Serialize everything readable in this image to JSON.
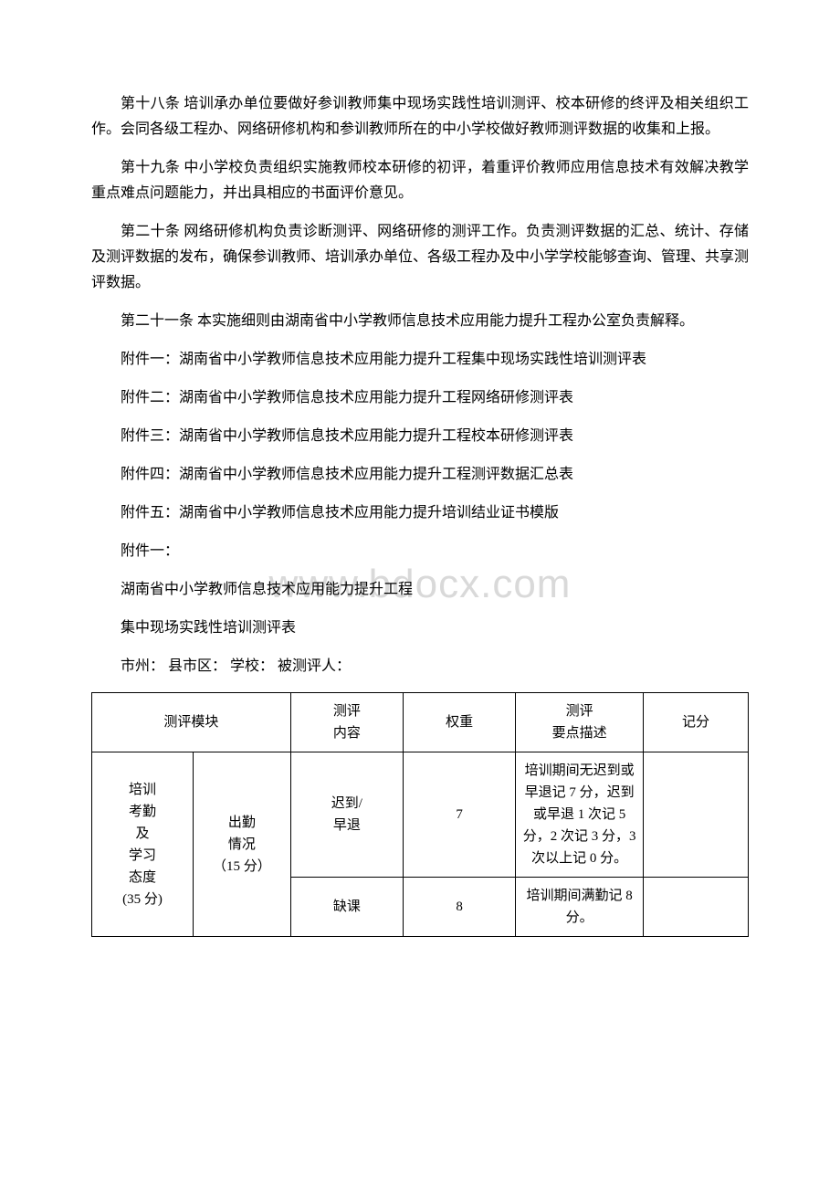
{
  "paragraphs": {
    "p18": "第十八条 培训承办单位要做好参训教师集中现场实践性培训测评、校本研修的终评及相关组织工作。会同各级工程办、网络研修机构和参训教师所在的中小学校做好教师测评数据的收集和上报。",
    "p19": "第十九条 中小学校负责组织实施教师校本研修的初评，着重评价教师应用信息技术有效解决教学重点难点问题能力，并出具相应的书面评价意见。",
    "p20": "第二十条 网络研修机构负责诊断测评、网络研修的测评工作。负责测评数据的汇总、统计、存储及测评数据的发布，确保参训教师、培训承办单位、各级工程办及中小学学校能够查询、管理、共享测评数据。",
    "p21": "第二十一条 本实施细则由湖南省中小学教师信息技术应用能力提升工程办公室负责解释。",
    "att1": "附件一：湖南省中小学教师信息技术应用能力提升工程集中现场实践性培训测评表",
    "att2": "附件二：湖南省中小学教师信息技术应用能力提升工程网络研修测评表",
    "att3": "附件三：湖南省中小学教师信息技术应用能力提升工程校本研修测评表",
    "att4": "附件四：湖南省中小学教师信息技术应用能力提升工程测评数据汇总表",
    "att5": "附件五：湖南省中小学教师信息技术应用能力提升培训结业证书模版",
    "att1_label": "附件一：",
    "title_line": "湖南省中小学教师信息技术应用能力提升工程",
    "subtitle_line": "集中现场实践性培训测评表",
    "form_header": "市州：  县市区：  学校：  被测评人："
  },
  "watermark": "www.bdocx.com",
  "table": {
    "headers": {
      "module": "测评模块",
      "content": "测评内容",
      "weight": "权重",
      "desc": "测评要点描述",
      "score": "记分"
    },
    "row1": {
      "module_a": "培训考勤\n及\n学习态度\n(35 分)",
      "module_b": "出勤情况\n（15 分）",
      "content": "迟到/早退",
      "weight": "7",
      "desc": "培训期间无迟到或早退记 7 分，迟到或早退 1 次记 5 分，2 次记 3 分，3 次以上记 0 分。",
      "score": ""
    },
    "row2": {
      "content": "缺课",
      "weight": "8",
      "desc": "培训期间满勤记 8 分。",
      "score": ""
    }
  },
  "styles": {
    "text_color": "#000000",
    "background_color": "#ffffff",
    "watermark_color": "#d9d9d9",
    "border_color": "#000000",
    "body_fontsize": 16,
    "table_fontsize": 15,
    "watermark_fontsize": 44,
    "line_height": 1.75
  }
}
